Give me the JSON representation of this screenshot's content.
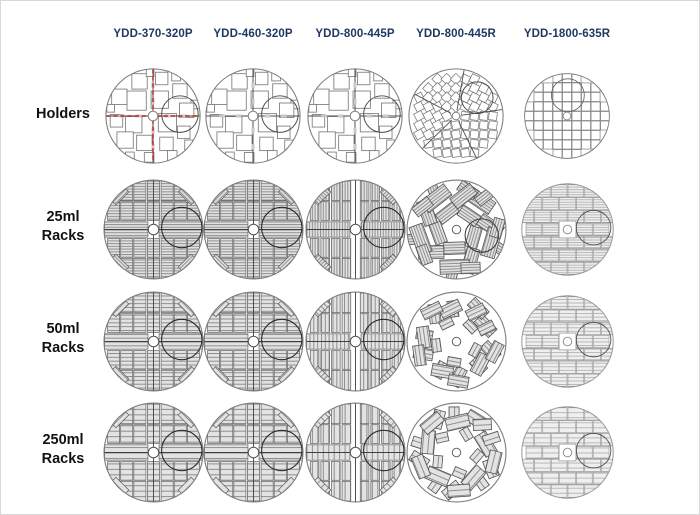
{
  "figure": {
    "kind": "product-configuration-matrix",
    "subject": "Cryogenic vial storage systems: holder and rack layouts per model"
  },
  "colors": {
    "header_text": "#1f3864",
    "label_text": "#111111",
    "outline": "#7d7d7d",
    "dark_line": "#4a4a4a",
    "red_cross": "#c0392b",
    "stripe": "#8f8f8f",
    "rack_fill": "#e3e3e3",
    "stripe_light": "#b5b5b5",
    "rack_fill_light": "#efefef",
    "inner_circle": "#2b2b2b",
    "background": "#ffffff"
  },
  "columns": [
    {
      "id": "ydd-370-320p",
      "label": "YDD-370-320P"
    },
    {
      "id": "ydd-460-320p",
      "label": "YDD-460-320P"
    },
    {
      "id": "ydd-800-445p",
      "label": "YDD-800-445P"
    },
    {
      "id": "ydd-800-445r",
      "label": "YDD-800-445R"
    },
    {
      "id": "ydd-1800-635r",
      "label": "YDD-1800-635R"
    }
  ],
  "rows": [
    {
      "id": "holders",
      "lines": [
        "Holders"
      ]
    },
    {
      "id": "25ml-racks",
      "lines": [
        "25ml",
        "Racks"
      ]
    },
    {
      "id": "50ml-racks",
      "lines": [
        "50ml",
        "Racks"
      ]
    },
    {
      "id": "250ml-racks",
      "lines": [
        "250ml",
        "Racks"
      ]
    }
  ],
  "cells": [
    {
      "row": 0,
      "col": 0,
      "type": "holder-squares",
      "cross": "red-dashed",
      "inner_circle": "right"
    },
    {
      "row": 0,
      "col": 1,
      "type": "holder-squares",
      "cross": "solid",
      "inner_circle": "right"
    },
    {
      "row": 0,
      "col": 2,
      "type": "holder-squares",
      "cross": "solid",
      "inner_circle": "right"
    },
    {
      "row": 0,
      "col": 3,
      "type": "holder-sectors",
      "sectors": 5,
      "inner_circle": "upper-right"
    },
    {
      "row": 0,
      "col": 4,
      "type": "holder-grid",
      "inner_circle": "top"
    },
    {
      "row": 1,
      "col": 0,
      "type": "racks-quadrant",
      "stripes": "horizontal",
      "density": "fine",
      "inner_circle": "right"
    },
    {
      "row": 1,
      "col": 1,
      "type": "racks-quadrant",
      "stripes": "horizontal",
      "density": "fine",
      "inner_circle": "right"
    },
    {
      "row": 1,
      "col": 2,
      "type": "racks-quadrant",
      "stripes": "vertical",
      "density": "fine",
      "small_blocks": true,
      "inner_circle": "right"
    },
    {
      "row": 1,
      "col": 3,
      "type": "racks-pinwheel",
      "density": "fine",
      "sectors": 5,
      "inner_circle": "right"
    },
    {
      "row": 1,
      "col": 4,
      "type": "racks-grid",
      "density": "fine",
      "inner_circle": "right"
    },
    {
      "row": 2,
      "col": 0,
      "type": "racks-quadrant",
      "stripes": "horizontal",
      "density": "medium",
      "inner_circle": "right"
    },
    {
      "row": 2,
      "col": 1,
      "type": "racks-quadrant",
      "stripes": "horizontal",
      "density": "medium",
      "inner_circle": "right"
    },
    {
      "row": 2,
      "col": 2,
      "type": "racks-quadrant",
      "stripes": "vertical",
      "density": "medium",
      "small_blocks": true,
      "inner_circle": "right"
    },
    {
      "row": 2,
      "col": 3,
      "type": "racks-pinwheel",
      "density": "medium",
      "sectors": 5
    },
    {
      "row": 2,
      "col": 4,
      "type": "racks-grid",
      "density": "medium",
      "inner_circle": "right"
    },
    {
      "row": 3,
      "col": 0,
      "type": "racks-quadrant",
      "stripes": "horizontal",
      "density": "coarse",
      "inner_circle": "right"
    },
    {
      "row": 3,
      "col": 1,
      "type": "racks-quadrant",
      "stripes": "horizontal",
      "density": "coarse",
      "inner_circle": "right"
    },
    {
      "row": 3,
      "col": 2,
      "type": "racks-quadrant",
      "stripes": "vertical",
      "density": "coarse",
      "small_blocks": true,
      "inner_circle": "right"
    },
    {
      "row": 3,
      "col": 3,
      "type": "racks-pinwheel",
      "density": "coarse",
      "sectors": 5
    },
    {
      "row": 3,
      "col": 4,
      "type": "racks-grid",
      "density": "coarse",
      "inner_circle": "right"
    }
  ]
}
